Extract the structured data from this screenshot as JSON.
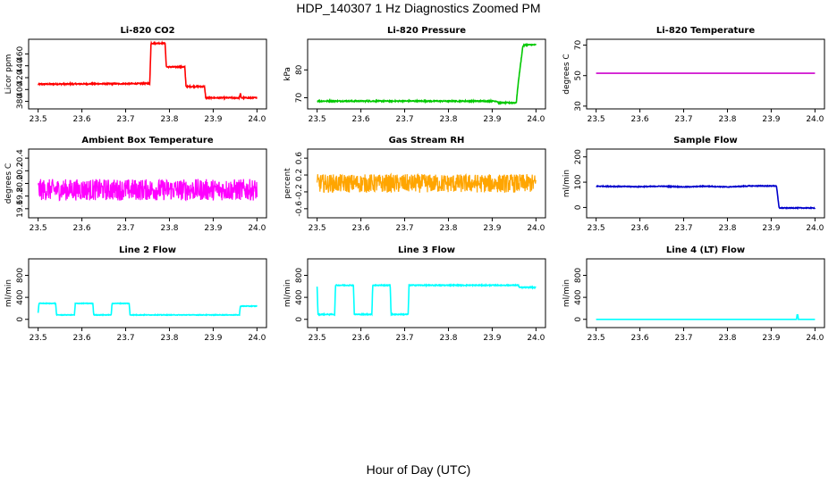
{
  "page": {
    "title": "HDP_140307  1 Hz Diagnostics Zoomed PM",
    "x_caption": "Hour of Day (UTC)"
  },
  "chart_data": [
    {
      "type": "line",
      "title": "Li-820 CO2",
      "ylabel": "Licor ppm",
      "color": "#ff0000",
      "xlim": [
        23.5,
        24.0
      ],
      "ylim": [
        372,
        480
      ],
      "x_ticks": [
        "23.5",
        "23.6",
        "23.7",
        "23.8",
        "23.9",
        "24.0"
      ],
      "y_ticks": [
        "380",
        "400",
        "420",
        "440",
        "460"
      ],
      "noise": 1,
      "series": [
        {
          "x": [
            23.5,
            23.755,
            23.758,
            23.79,
            23.793,
            23.835,
            23.838,
            23.88,
            23.883,
            23.96,
            23.962,
            23.964,
            24.0
          ],
          "y": [
            409,
            410,
            478,
            478,
            438,
            438,
            405,
            405,
            386,
            386,
            394,
            386,
            386
          ]
        }
      ]
    },
    {
      "type": "line",
      "title": "Li-820 Pressure",
      "ylabel": "kPa",
      "color": "#00c800",
      "xlim": [
        23.5,
        24.0
      ],
      "ylim": [
        67,
        90
      ],
      "x_ticks": [
        "23.5",
        "23.6",
        "23.7",
        "23.8",
        "23.9",
        "24.0"
      ],
      "y_ticks": [
        "70",
        "80"
      ],
      "noise": 0.2,
      "series": [
        {
          "x": [
            23.5,
            23.91,
            23.915,
            23.955,
            23.96,
            23.97,
            23.975,
            24.0
          ],
          "y": [
            68.8,
            68.8,
            68.2,
            68.2,
            76,
            88.5,
            89,
            89
          ]
        }
      ]
    },
    {
      "type": "line",
      "title": "Li-820 Temperature",
      "ylabel": "degrees C",
      "color": "#cc00cc",
      "xlim": [
        23.5,
        24.0
      ],
      "ylim": [
        30,
        72
      ],
      "x_ticks": [
        "23.5",
        "23.6",
        "23.7",
        "23.8",
        "23.9",
        "24.0"
      ],
      "y_ticks": [
        "30",
        "50",
        "70"
      ],
      "noise": 0,
      "series": [
        {
          "x": [
            23.5,
            24.0
          ],
          "y": [
            51.5,
            51.5
          ]
        }
      ]
    },
    {
      "type": "line",
      "title": "Ambient Box Temperature",
      "ylabel": "degrees C",
      "color": "#ff00ff",
      "xlim": [
        23.5,
        24.0
      ],
      "ylim": [
        19.5,
        20.5
      ],
      "x_ticks": [
        "23.5",
        "23.6",
        "23.7",
        "23.8",
        "23.9",
        "24.0"
      ],
      "y_ticks": [
        "19.6",
        "19.8",
        "20.0",
        "20.2",
        "20.4"
      ],
      "noise": 0.17,
      "series": [
        {
          "x": [
            23.5,
            24.0
          ],
          "y": [
            19.9,
            19.9
          ]
        }
      ]
    },
    {
      "type": "line",
      "title": "Gas Stream RH",
      "ylabel": "percent",
      "color": "#ffa500",
      "xlim": [
        23.5,
        24.0
      ],
      "ylim": [
        -0.75,
        0.75
      ],
      "x_ticks": [
        "23.5",
        "23.6",
        "23.7",
        "23.8",
        "23.9",
        "24.0"
      ],
      "y_ticks": [
        "-0.6",
        "-0.2",
        "0.2",
        "0.6"
      ],
      "noise": 0.22,
      "series": [
        {
          "x": [
            23.5,
            24.0
          ],
          "y": [
            0.0,
            0.0
          ]
        }
      ]
    },
    {
      "type": "line",
      "title": "Sample Flow",
      "ylabel": "ml/min",
      "color": "#0000cc",
      "xlim": [
        23.5,
        24.0
      ],
      "ylim": [
        -30,
        220
      ],
      "x_ticks": [
        "23.5",
        "23.6",
        "23.7",
        "23.8",
        "23.9",
        "24.0"
      ],
      "y_ticks": [
        "0",
        "100",
        "200"
      ],
      "noise": 1.5,
      "series": [
        {
          "x": [
            23.5,
            23.6,
            23.65,
            23.7,
            23.75,
            23.8,
            23.85,
            23.912,
            23.918,
            24.0
          ],
          "y": [
            84,
            82,
            84,
            81,
            84,
            81,
            85,
            85,
            -2,
            -2
          ]
        }
      ]
    },
    {
      "type": "line",
      "title": "Line 2 Flow",
      "ylabel": "ml/min",
      "color": "#00ffff",
      "xlim": [
        23.5,
        24.0
      ],
      "ylim": [
        -100,
        1050
      ],
      "x_ticks": [
        "23.5",
        "23.6",
        "23.7",
        "23.8",
        "23.9",
        "24.0"
      ],
      "y_ticks": [
        "0",
        "400",
        "800"
      ],
      "noise": 5,
      "series": [
        {
          "x": [
            23.5,
            23.502,
            23.54,
            23.542,
            23.583,
            23.585,
            23.625,
            23.627,
            23.667,
            23.669,
            23.708,
            23.71,
            23.96,
            23.962,
            24.0
          ],
          "y": [
            120,
            290,
            290,
            80,
            80,
            290,
            290,
            80,
            80,
            290,
            290,
            80,
            80,
            240,
            240
          ]
        }
      ]
    },
    {
      "type": "line",
      "title": "Line 3 Flow",
      "ylabel": "ml/min",
      "color": "#00ffff",
      "xlim": [
        23.5,
        24.0
      ],
      "ylim": [
        -100,
        1050
      ],
      "x_ticks": [
        "23.5",
        "23.6",
        "23.7",
        "23.8",
        "23.9",
        "24.0"
      ],
      "y_ticks": [
        "0",
        "400",
        "800"
      ],
      "noise": 8,
      "series": [
        {
          "x": [
            23.5,
            23.502,
            23.54,
            23.542,
            23.583,
            23.585,
            23.625,
            23.627,
            23.667,
            23.669,
            23.708,
            23.71,
            23.96,
            23.962,
            24.0
          ],
          "y": [
            600,
            90,
            90,
            620,
            620,
            90,
            90,
            620,
            620,
            90,
            90,
            620,
            620,
            580,
            580
          ]
        }
      ]
    },
    {
      "type": "line",
      "title": "Line 4 (LT) Flow",
      "ylabel": "ml/min",
      "color": "#00ffff",
      "xlim": [
        23.5,
        24.0
      ],
      "ylim": [
        -100,
        1050
      ],
      "x_ticks": [
        "23.5",
        "23.6",
        "23.7",
        "23.8",
        "23.9",
        "24.0"
      ],
      "y_ticks": [
        "0",
        "400",
        "800"
      ],
      "noise": 0,
      "series": [
        {
          "x": [
            23.5,
            23.958,
            23.959,
            23.961,
            23.962,
            24.0
          ],
          "y": [
            0,
            0,
            80,
            80,
            0,
            0
          ]
        }
      ]
    }
  ]
}
